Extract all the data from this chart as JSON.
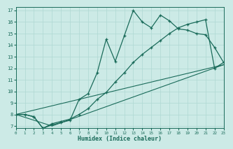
{
  "xlabel": "Humidex (Indice chaleur)",
  "bg_color": "#cceae6",
  "line_color": "#1a6b5a",
  "grid_color": "#afd8d3",
  "line1_x": [
    0,
    1,
    2,
    3,
    4,
    5,
    6,
    7,
    8,
    9,
    10,
    11,
    12,
    13,
    14,
    15,
    16,
    17,
    18,
    19,
    20,
    21,
    22,
    23
  ],
  "line1_y": [
    8.0,
    8.0,
    7.8,
    6.8,
    7.1,
    7.3,
    7.5,
    9.3,
    9.8,
    11.6,
    14.5,
    12.6,
    14.8,
    17.0,
    16.0,
    15.5,
    16.6,
    16.1,
    15.4,
    15.3,
    15.0,
    14.9,
    13.8,
    12.5
  ],
  "line2_x": [
    0,
    1,
    2,
    3,
    4,
    5,
    6,
    7,
    8,
    9,
    10,
    11,
    12,
    13,
    14,
    15,
    16,
    17,
    18,
    19,
    20,
    21,
    22,
    23
  ],
  "line2_y": [
    8.0,
    8.0,
    7.8,
    6.8,
    7.2,
    7.4,
    7.6,
    8.0,
    8.5,
    9.3,
    9.9,
    10.8,
    11.6,
    12.5,
    13.2,
    13.8,
    14.4,
    15.0,
    15.5,
    15.8,
    16.0,
    16.2,
    12.0,
    12.5
  ],
  "line3_x": [
    0,
    23
  ],
  "line3_y": [
    8.0,
    12.3
  ],
  "line4_x": [
    0,
    4,
    23
  ],
  "line4_y": [
    8.0,
    7.0,
    12.3
  ],
  "xlim": [
    0,
    23
  ],
  "ylim": [
    6.8,
    17.3
  ],
  "yticks": [
    7,
    8,
    9,
    10,
    11,
    12,
    13,
    14,
    15,
    16,
    17
  ],
  "xticks": [
    0,
    1,
    2,
    3,
    4,
    5,
    6,
    7,
    8,
    9,
    10,
    11,
    12,
    13,
    14,
    15,
    16,
    17,
    18,
    19,
    20,
    21,
    22,
    23
  ]
}
